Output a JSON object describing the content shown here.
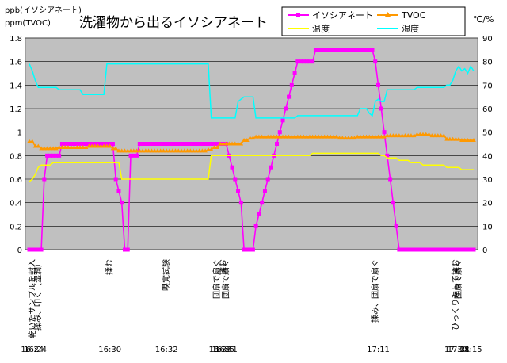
{
  "chart_data": {
    "type": "line",
    "title": "洗濯物から出るイソシアネート",
    "y_left_label_1": "ppb(イソシアネート)",
    "y_left_label_2": "ppm(TVOC)",
    "y_right_label": "℃/%",
    "ylim_left": [
      0,
      1.8
    ],
    "ylim_right": [
      0,
      90
    ],
    "y_left_ticks": [
      "0",
      "0.2",
      "0.4",
      "0.6",
      "0.8",
      "1",
      "1.2",
      "1.4",
      "1.6",
      "1.8"
    ],
    "y_right_ticks": [
      "0",
      "10",
      "20",
      "30",
      "40",
      "50",
      "60",
      "70",
      "80",
      "90"
    ],
    "grid": "horizontal",
    "legend_position": "top-right",
    "n_points": 150,
    "series": [
      {
        "name": "イソシアネート",
        "axis": "left",
        "color": "#ff00ff",
        "marker": "square",
        "points": [
          [
            0,
            0
          ],
          [
            4,
            0
          ],
          [
            5,
            0.6
          ],
          [
            6,
            0.8
          ],
          [
            10,
            0.8
          ],
          [
            11,
            0.9
          ],
          [
            28,
            0.9
          ],
          [
            29,
            0.6
          ],
          [
            30,
            0.5
          ],
          [
            31,
            0.4
          ],
          [
            32,
            0
          ],
          [
            33,
            0
          ],
          [
            34,
            0.8
          ],
          [
            35,
            0.8
          ],
          [
            36,
            0.8
          ],
          [
            37,
            0.9
          ],
          [
            66,
            0.9
          ],
          [
            67,
            0.8
          ],
          [
            68,
            0.7
          ],
          [
            69,
            0.6
          ],
          [
            70,
            0.5
          ],
          [
            71,
            0.4
          ],
          [
            72,
            0
          ],
          [
            75,
            0
          ],
          [
            76,
            0.2
          ],
          [
            77,
            0.3
          ],
          [
            78,
            0.4
          ],
          [
            79,
            0.5
          ],
          [
            80,
            0.6
          ],
          [
            81,
            0.7
          ],
          [
            82,
            0.8
          ],
          [
            83,
            0.9
          ],
          [
            84,
            1.0
          ],
          [
            85,
            1.1
          ],
          [
            86,
            1.2
          ],
          [
            87,
            1.3
          ],
          [
            88,
            1.4
          ],
          [
            89,
            1.5
          ],
          [
            90,
            1.6
          ],
          [
            95,
            1.6
          ],
          [
            96,
            1.7
          ],
          [
            115,
            1.7
          ],
          [
            116,
            1.6
          ],
          [
            117,
            1.4
          ],
          [
            118,
            1.2
          ],
          [
            119,
            1.0
          ],
          [
            120,
            0.8
          ],
          [
            121,
            0.6
          ],
          [
            122,
            0.4
          ],
          [
            123,
            0.2
          ],
          [
            124,
            0
          ],
          [
            149,
            0
          ]
        ]
      },
      {
        "name": "TVOC",
        "axis": "left",
        "color": "#ff9900",
        "marker": "triangle",
        "points": [
          [
            0,
            0.92
          ],
          [
            2,
            0.88
          ],
          [
            4,
            0.86
          ],
          [
            10,
            0.87
          ],
          [
            20,
            0.88
          ],
          [
            28,
            0.86
          ],
          [
            30,
            0.84
          ],
          [
            40,
            0.84
          ],
          [
            50,
            0.84
          ],
          [
            60,
            0.85
          ],
          [
            62,
            0.87
          ],
          [
            64,
            0.9
          ],
          [
            70,
            0.9
          ],
          [
            72,
            0.93
          ],
          [
            74,
            0.95
          ],
          [
            76,
            0.96
          ],
          [
            80,
            0.96
          ],
          [
            90,
            0.96
          ],
          [
            100,
            0.96
          ],
          [
            104,
            0.95
          ],
          [
            110,
            0.96
          ],
          [
            115,
            0.96
          ],
          [
            120,
            0.97
          ],
          [
            125,
            0.97
          ],
          [
            130,
            0.98
          ],
          [
            135,
            0.97
          ],
          [
            140,
            0.94
          ],
          [
            145,
            0.93
          ],
          [
            149,
            0.93
          ]
        ]
      },
      {
        "name": "温度",
        "axis": "right",
        "color": "#ffff00",
        "marker": "none",
        "points": [
          [
            0,
            29
          ],
          [
            1,
            30
          ],
          [
            2,
            32
          ],
          [
            3,
            35
          ],
          [
            4,
            36
          ],
          [
            8,
            37
          ],
          [
            30,
            37
          ],
          [
            31,
            30
          ],
          [
            40,
            30
          ],
          [
            50,
            30
          ],
          [
            60,
            30
          ],
          [
            61,
            40
          ],
          [
            70,
            40
          ],
          [
            80,
            40
          ],
          [
            90,
            40
          ],
          [
            95,
            41
          ],
          [
            110,
            41
          ],
          [
            118,
            40
          ],
          [
            120,
            39
          ],
          [
            124,
            38
          ],
          [
            128,
            37
          ],
          [
            132,
            36
          ],
          [
            140,
            35
          ],
          [
            145,
            34
          ],
          [
            149,
            34
          ]
        ]
      },
      {
        "name": "湿度",
        "axis": "right",
        "color": "#00ffff",
        "marker": "none",
        "points": [
          [
            0,
            79
          ],
          [
            1,
            76
          ],
          [
            2,
            72
          ],
          [
            3,
            69
          ],
          [
            4,
            69
          ],
          [
            10,
            68
          ],
          [
            18,
            66
          ],
          [
            25,
            66
          ],
          [
            26,
            79
          ],
          [
            50,
            79
          ],
          [
            51,
            79
          ],
          [
            60,
            79
          ],
          [
            61,
            56
          ],
          [
            68,
            56
          ],
          [
            69,
            56
          ],
          [
            70,
            63
          ],
          [
            71,
            64
          ],
          [
            72,
            65
          ],
          [
            75,
            65
          ],
          [
            76,
            56
          ],
          [
            85,
            56
          ],
          [
            90,
            57
          ],
          [
            100,
            57
          ],
          [
            110,
            57
          ],
          [
            111,
            60
          ],
          [
            112,
            60
          ],
          [
            114,
            58
          ],
          [
            115,
            57
          ],
          [
            116,
            63
          ],
          [
            117,
            64
          ],
          [
            118,
            63
          ],
          [
            120,
            68
          ],
          [
            130,
            69
          ],
          [
            140,
            70
          ],
          [
            142,
            72
          ],
          [
            143,
            76
          ],
          [
            144,
            78
          ],
          [
            145,
            76
          ],
          [
            146,
            77
          ],
          [
            147,
            75
          ],
          [
            148,
            78
          ],
          [
            149,
            76
          ]
        ]
      }
    ],
    "annotations": [
      {
        "at": 1,
        "text": "乾いたサンプルを封入"
      },
      {
        "at": 3,
        "text": "揉み、叩く（湿潤）"
      },
      {
        "at": 27,
        "text": "揉む"
      },
      {
        "at": 46,
        "text": "嗅覚試験"
      },
      {
        "at": 63,
        "text": "団扇で扇ぐ"
      },
      {
        "at": 65,
        "text": "揉む"
      },
      {
        "at": 66,
        "text": "団扇で扇ぐ"
      },
      {
        "at": 116,
        "text": "揉み、団扇で扇ぐ"
      },
      {
        "at": 143,
        "text": "ひっくり返して揉む"
      },
      {
        "at": 144,
        "text": "団扇で扇ぐ"
      }
    ],
    "time_labels": [
      {
        "at": 1,
        "text": "16:24"
      },
      {
        "at": 2,
        "text": "16:24"
      },
      {
        "at": 27,
        "text": "16:30"
      },
      {
        "at": 46,
        "text": "16:32"
      },
      {
        "at": 64,
        "text": "16:33"
      },
      {
        "at": 65,
        "text": "16:35"
      },
      {
        "at": 66,
        "text": "16:41"
      },
      {
        "at": 117,
        "text": "17:11"
      },
      {
        "at": 143,
        "text": "17:30"
      },
      {
        "at": 144,
        "text": "17:31"
      },
      {
        "at": 148,
        "text": "18:15"
      }
    ]
  }
}
